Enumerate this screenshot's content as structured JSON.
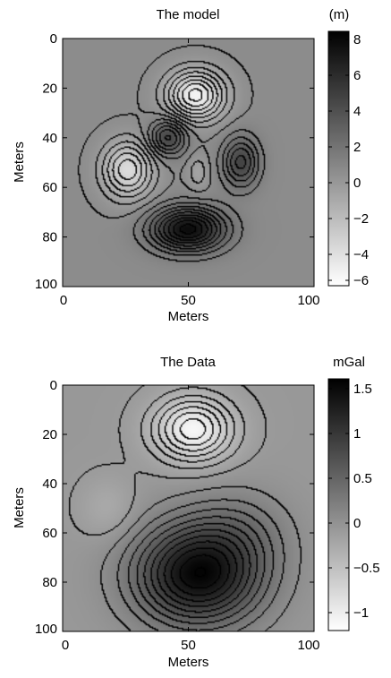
{
  "chart_data": [
    {
      "type": "heatmap",
      "title": "The model",
      "xlabel": "Meters",
      "ylabel": "Meters",
      "colorbar_label": "(m)",
      "x_ticks": [
        "0",
        "50",
        "100"
      ],
      "y_ticks": [
        "0",
        "20",
        "40",
        "60",
        "80",
        "100"
      ],
      "colorbar_ticks": [
        "8",
        "6",
        "4",
        "2",
        "0",
        "−2",
        "−4",
        "−6"
      ],
      "xlim": [
        0,
        100
      ],
      "ylim": [
        0,
        100
      ],
      "clim": [
        -7,
        8.5
      ],
      "y_direction": "reversed",
      "colormap": "gray-reversed",
      "contour_lines": true,
      "bumps": [
        {
          "x": 53,
          "y": 23,
          "amplitude": -6.5,
          "sx": 8,
          "sy": 7
        },
        {
          "x": 26,
          "y": 53,
          "amplitude": -5,
          "sx": 7,
          "sy": 8
        },
        {
          "x": 42,
          "y": 40,
          "amplitude": 4.5,
          "sx": 5,
          "sy": 5
        },
        {
          "x": 71,
          "y": 50,
          "amplitude": 4.5,
          "sx": 5,
          "sy": 7
        },
        {
          "x": 50,
          "y": 77,
          "amplitude": 8,
          "sx": 10,
          "sy": 6
        },
        {
          "x": 54,
          "y": 54,
          "amplitude": -1.5,
          "sx": 3,
          "sy": 5
        }
      ]
    },
    {
      "type": "heatmap",
      "title": "The Data",
      "xlabel": "Meters",
      "ylabel": "Meters",
      "colorbar_label": "mGal",
      "x_ticks": [
        "0",
        "50",
        "100"
      ],
      "y_ticks": [
        "0",
        "20",
        "40",
        "60",
        "80",
        "100"
      ],
      "colorbar_ticks": [
        "1.5",
        "1",
        "0.5",
        "0",
        "−0.5",
        "−1"
      ],
      "xlim": [
        0,
        100
      ],
      "ylim": [
        0,
        100
      ],
      "clim": [
        -1.1,
        1.65
      ],
      "y_direction": "reversed",
      "colormap": "gray-reversed",
      "contour_lines": true,
      "bumps": [
        {
          "x": 52,
          "y": 18,
          "amplitude": -1.05,
          "sx": 11,
          "sy": 9
        },
        {
          "x": 18,
          "y": 50,
          "amplitude": -0.2,
          "sx": 8,
          "sy": 9
        },
        {
          "x": 54,
          "y": 77,
          "amplitude": 1.6,
          "sx": 17,
          "sy": 14
        },
        {
          "x": 70,
          "y": 60,
          "amplitude": 0.3,
          "sx": 14,
          "sy": 12
        }
      ]
    }
  ]
}
